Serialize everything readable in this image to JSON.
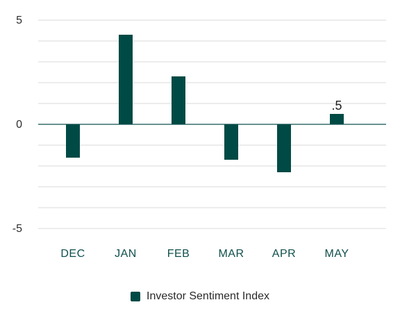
{
  "chart_data": {
    "type": "bar",
    "categories": [
      "DEC",
      "JAN",
      "FEB",
      "MAR",
      "APR",
      "MAY"
    ],
    "series": [
      {
        "name": "Investor Sentiment Index",
        "values": [
          -1.6,
          4.3,
          2.3,
          -1.7,
          -2.3,
          0.5
        ],
        "color": "#004a45"
      }
    ],
    "data_labels": [
      "",
      "",
      "",
      "",
      "",
      ".5"
    ],
    "ylim": [
      -5,
      5
    ],
    "yticks": [
      5,
      0,
      -5
    ],
    "ytick_labels": [
      "5",
      "0",
      "-5"
    ],
    "grid": true,
    "legend_position": "bottom-center",
    "title": "",
    "xlabel": "",
    "ylabel": ""
  },
  "colors": {
    "bar": "#004a45",
    "grid": "#d9d9d9",
    "zero_line": "#0f4f4c"
  }
}
